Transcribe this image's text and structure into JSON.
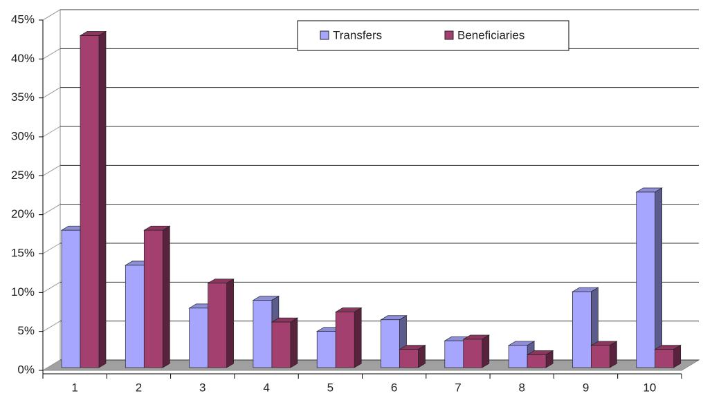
{
  "chart_data": {
    "type": "bar3d",
    "categories": [
      "1",
      "2",
      "3",
      "4",
      "5",
      "6",
      "7",
      "8",
      "9",
      "10"
    ],
    "series": [
      {
        "name": "Transfers",
        "color": "#a6a6ff",
        "values": [
          18,
          13.5,
          8,
          9,
          5,
          6.5,
          3.8,
          3.2,
          10.1,
          22.9
        ]
      },
      {
        "name": "Beneficiaries",
        "color": "#a3406f",
        "values": [
          43,
          18,
          11.2,
          6.2,
          7.5,
          2.7,
          4,
          2,
          3.2,
          2.7
        ]
      }
    ],
    "ylim": [
      0,
      45
    ],
    "yticks": [
      {
        "value": 0,
        "label": "0%"
      },
      {
        "value": 5,
        "label": "5%"
      },
      {
        "value": 10,
        "label": "10%"
      },
      {
        "value": 15,
        "label": "15%"
      },
      {
        "value": 20,
        "label": "20%"
      },
      {
        "value": 25,
        "label": "25%"
      },
      {
        "value": 30,
        "label": "30%"
      },
      {
        "value": 35,
        "label": "35%"
      },
      {
        "value": 40,
        "label": "40%"
      },
      {
        "value": 45,
        "label": "45%"
      }
    ],
    "grid": true,
    "legend": "top"
  }
}
